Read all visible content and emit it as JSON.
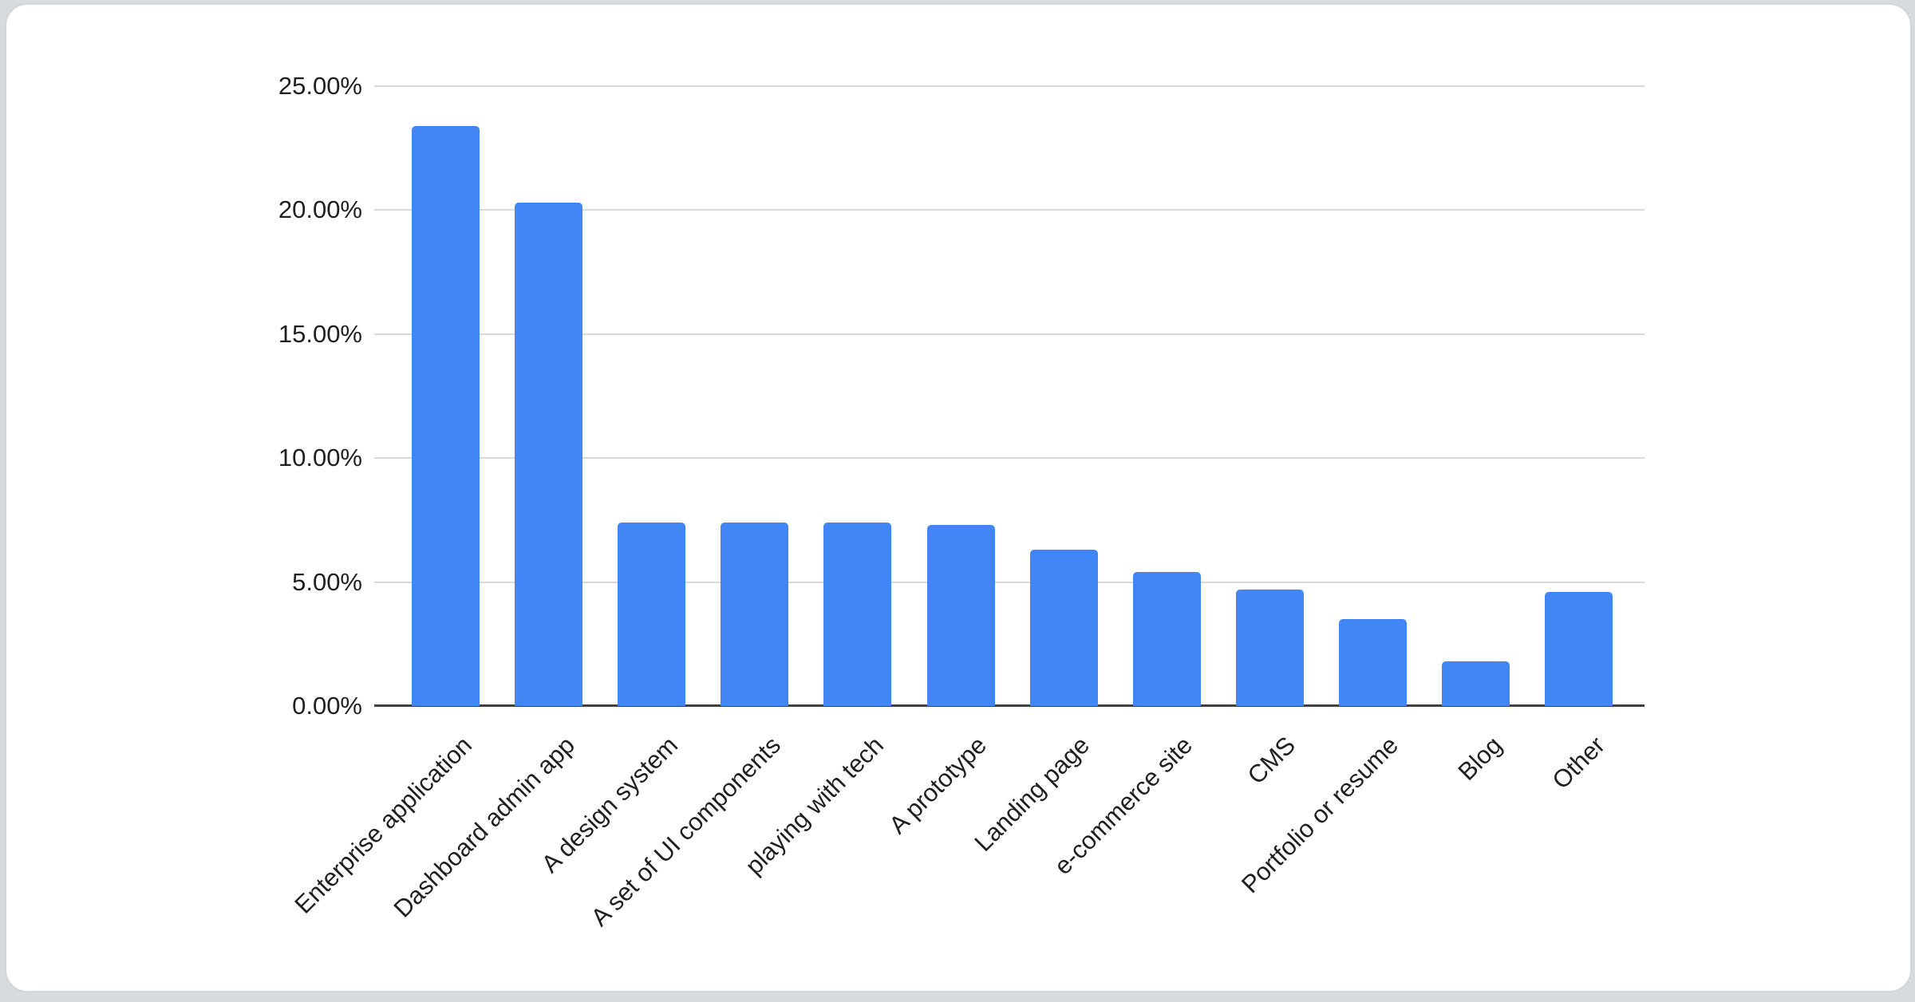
{
  "page": {
    "background_color": "#d8dbde"
  },
  "card": {
    "background_color": "#ffffff",
    "border_color": "#d2d5d9"
  },
  "chart_data": {
    "type": "bar",
    "title": "",
    "xlabel": "",
    "ylabel": "",
    "categories": [
      "Enterprise application",
      "Dashboard admin app",
      "A design system",
      "A set of UI components",
      "playing with tech",
      "A prototype",
      "Landing page",
      "e-commerce site",
      "CMS",
      "Portfolio or resume",
      "Blog",
      "Other"
    ],
    "values": [
      23.4,
      20.3,
      7.4,
      7.4,
      7.4,
      7.3,
      6.3,
      5.4,
      4.7,
      3.5,
      1.8,
      4.6
    ],
    "value_unit": "%",
    "ylim": [
      0,
      25
    ],
    "y_ticks": [
      {
        "label": "0.00%",
        "value": 0
      },
      {
        "label": "5.00%",
        "value": 5
      },
      {
        "label": "10.00%",
        "value": 10
      },
      {
        "label": "15.00%",
        "value": 15
      },
      {
        "label": "20.00%",
        "value": 20
      },
      {
        "label": "25.00%",
        "value": 25
      }
    ],
    "x_label_rotation": -45,
    "grid": true,
    "legend": "none",
    "bar_color": "#4285f4",
    "gridline_color": "#d9d9d9",
    "axis_line_color": "#404040",
    "label_color": "#1f1f1f"
  }
}
